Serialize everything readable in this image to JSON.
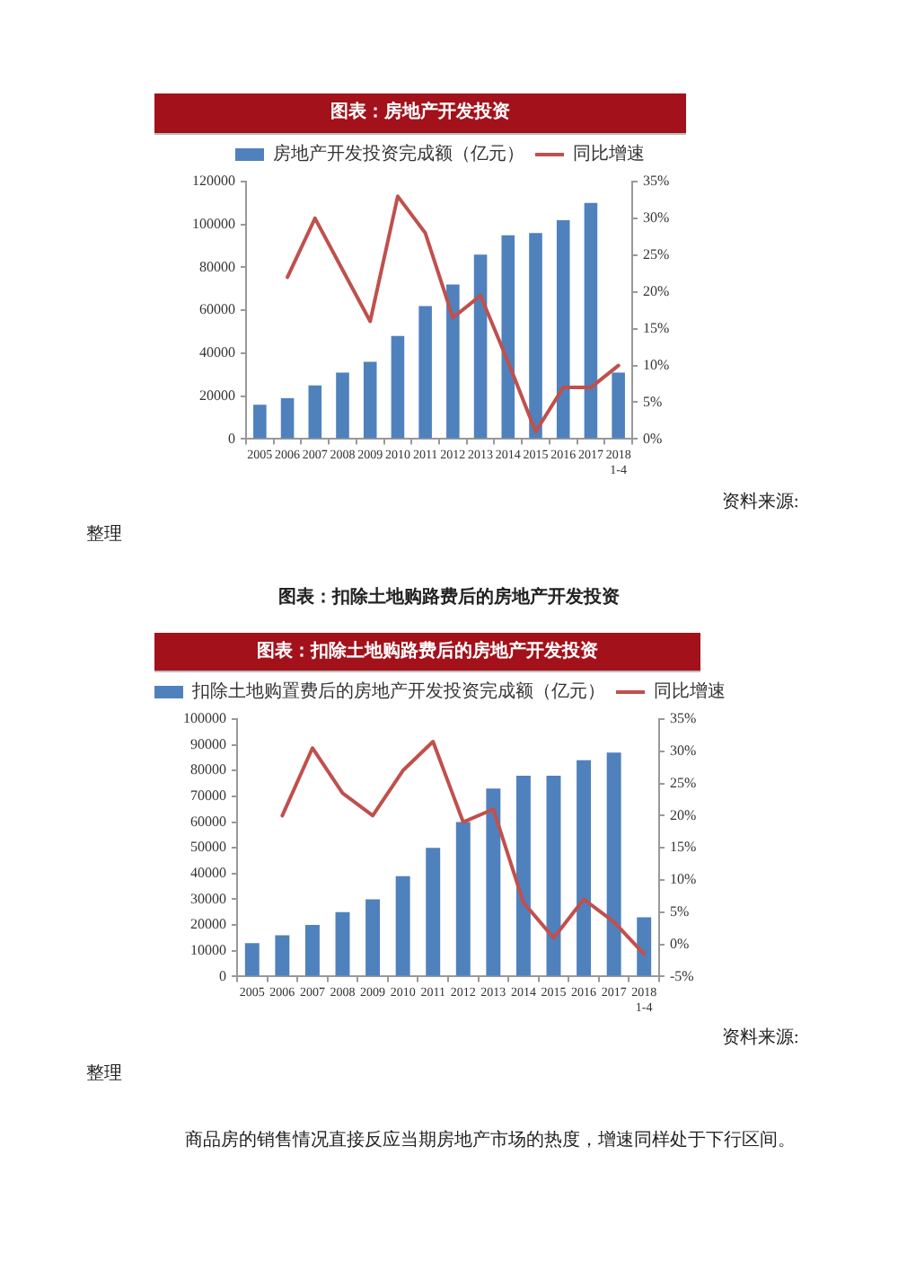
{
  "chart_data": [
    {
      "type": "bar",
      "title": "图表：房地产开发投资",
      "categories": [
        "2005",
        "2006",
        "2007",
        "2008",
        "2009",
        "2010",
        "2011",
        "2012",
        "2013",
        "2014",
        "2015",
        "2016",
        "2017",
        "2018 1-4"
      ],
      "series": [
        {
          "name": "房地产开发投资完成额（亿元）",
          "color": "#4f81bd",
          "values": [
            16000,
            19000,
            25000,
            31000,
            36000,
            48000,
            62000,
            72000,
            86000,
            95000,
            96000,
            102000,
            110000,
            31000
          ]
        },
        {
          "name": "同比增速",
          "type": "line",
          "axis": "y2",
          "color": "#c0504d",
          "values": [
            null,
            22,
            30,
            23,
            16,
            33,
            28,
            16.5,
            19.5,
            10.5,
            1,
            7,
            7,
            10
          ]
        }
      ],
      "ylim": [
        0,
        120000
      ],
      "yticks": [
        0,
        20000,
        40000,
        60000,
        80000,
        100000,
        120000
      ],
      "y2lim": [
        0,
        35
      ],
      "y2ticks": [
        {
          "value": 0,
          "label": "0%"
        },
        {
          "value": 5,
          "label": "5%"
        },
        {
          "value": 10,
          "label": "10%"
        },
        {
          "value": 15,
          "label": "15%"
        },
        {
          "value": 20,
          "label": "20%"
        },
        {
          "value": 25,
          "label": "25%"
        },
        {
          "value": 30,
          "label": "30%"
        },
        {
          "value": 35,
          "label": "35%"
        }
      ],
      "grid": false,
      "legend": "top",
      "marker": "none",
      "annotations": [
        "资料来源:",
        "整理"
      ]
    },
    {
      "type": "bar",
      "title": "图表：扣除土地购路费后的房地产开发投资",
      "categories": [
        "2005",
        "2006",
        "2007",
        "2008",
        "2009",
        "2010",
        "2011",
        "2012",
        "2013",
        "2014",
        "2015",
        "2016",
        "2017",
        "2018 1-4"
      ],
      "series": [
        {
          "name": "扣除土地购置费后的房地产开发投资完成额（亿元）",
          "color": "#4f81bd",
          "values": [
            13000,
            16000,
            20000,
            25000,
            30000,
            39000,
            50000,
            60000,
            73000,
            78000,
            78000,
            84000,
            87000,
            23000
          ]
        },
        {
          "name": "同比增速",
          "type": "line",
          "axis": "y2",
          "color": "#c0504d",
          "values": [
            null,
            20,
            30.5,
            23.5,
            20,
            27,
            31.5,
            19,
            21,
            6.5,
            1,
            7,
            3.5,
            -1.5
          ]
        }
      ],
      "ylim": [
        0,
        100000
      ],
      "yticks": [
        0,
        10000,
        20000,
        30000,
        40000,
        50000,
        60000,
        70000,
        80000,
        90000,
        100000
      ],
      "y2lim": [
        -5,
        35
      ],
      "y2ticks": [
        {
          "value": -5,
          "label": "-5%"
        },
        {
          "value": 0,
          "label": "0%"
        },
        {
          "value": 5,
          "label": "5%"
        },
        {
          "value": 10,
          "label": "10%"
        },
        {
          "value": 15,
          "label": "15%"
        },
        {
          "value": 20,
          "label": "20%"
        },
        {
          "value": 25,
          "label": "25%"
        },
        {
          "value": 30,
          "label": "30%"
        },
        {
          "value": 35,
          "label": "35%"
        }
      ],
      "grid": false,
      "legend": "top",
      "marker": "none",
      "annotations": [
        "图表：扣除土地购路费后的房地产开发投资",
        "资料来源:",
        "整理",
        "商品房的销售情况直接反应当期房地产市场的热度，增速同样处于下行区间。"
      ]
    }
  ]
}
